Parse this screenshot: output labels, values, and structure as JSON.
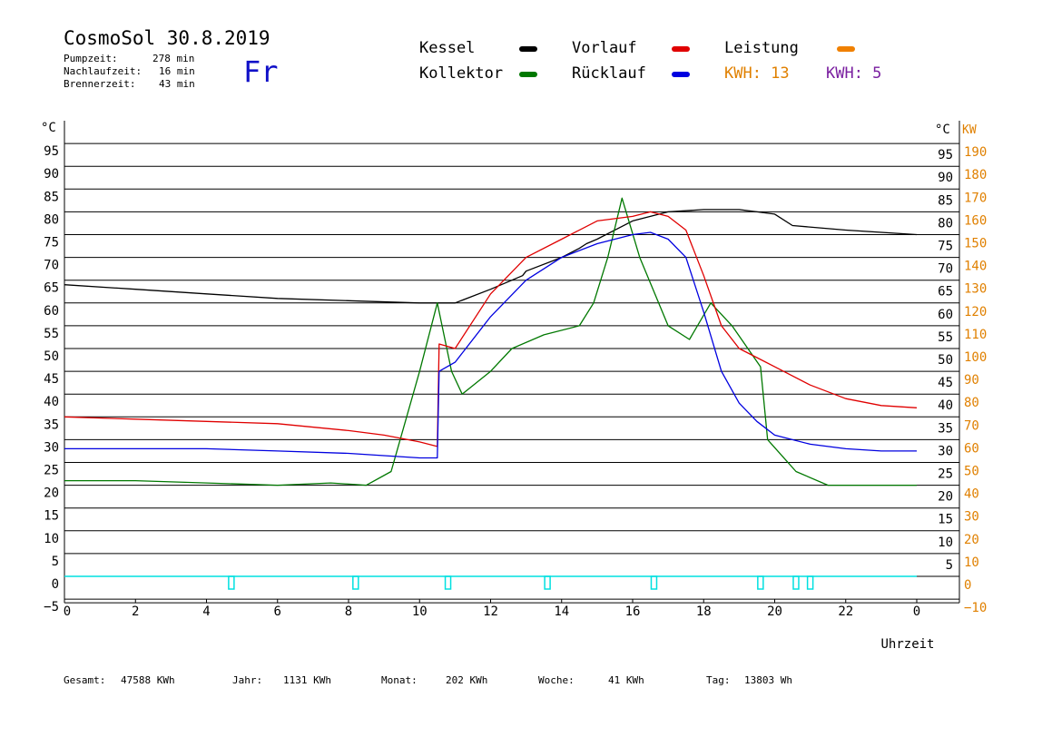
{
  "header": {
    "title": "CosmoSol 30.8.2019",
    "weekday": "Fr",
    "stats": [
      {
        "label": "Pumpzeit:",
        "value": "278 min"
      },
      {
        "label": "Nachlaufzeit:",
        "value": "16 min"
      },
      {
        "label": "Brennerzeit:",
        "value": "43 min"
      }
    ]
  },
  "legend": {
    "kessel": "Kessel",
    "kollektor": "Kollektor",
    "vorlauf": "Vorlauf",
    "ruecklauf": "Rücklauf",
    "leistung": "Leistung",
    "kwh1": "KWH: 13",
    "kwh2": "KWH: 5"
  },
  "colors": {
    "kessel": "#000000",
    "kollektor": "#007800",
    "vorlauf": "#e00000",
    "ruecklauf": "#0000e0",
    "leistung": "#f08000",
    "kwh2": "#7a1fa0",
    "pumpe": "#00e0e0",
    "right_axis": "#e08000"
  },
  "footer": [
    {
      "label": "Gesamt:",
      "value": "47588 KWh"
    },
    {
      "label": "Jahr:",
      "value": "1131 KWh"
    },
    {
      "label": "Monat:",
      "value": "202 KWh"
    },
    {
      "label": "Woche:",
      "value": "41 KWh"
    },
    {
      "label": "Tag:",
      "value": "13803 Wh"
    }
  ],
  "chart_data": {
    "type": "line",
    "xlabel": "Uhrzeit",
    "x_ticks": [
      "0",
      "2",
      "4",
      "6",
      "8",
      "10",
      "12",
      "14",
      "16",
      "18",
      "20",
      "22",
      "0"
    ],
    "xlim": [
      0,
      24
    ],
    "left_axis": {
      "unit": "°C",
      "ticks": [
        "95",
        "90",
        "85",
        "80",
        "75",
        "70",
        "65",
        "60",
        "55",
        "50",
        "45",
        "40",
        "35",
        "30",
        "25",
        "20",
        "15",
        "10",
        "5",
        "0",
        "−5"
      ],
      "ylim": [
        -5,
        100
      ]
    },
    "right_axis_c": {
      "unit": "°C",
      "ticks": [
        "95",
        "90",
        "85",
        "80",
        "75",
        "70",
        "65",
        "60",
        "55",
        "50",
        "45",
        "40",
        "35",
        "30",
        "25",
        "20",
        "15",
        "10",
        "5"
      ]
    },
    "right_axis_kw": {
      "unit": "KW",
      "ticks": [
        "190",
        "180",
        "170",
        "160",
        "150",
        "140",
        "130",
        "120",
        "110",
        "100",
        "90",
        "80",
        "70",
        "60",
        "50",
        "40",
        "30",
        "20",
        "10",
        "0",
        "−10"
      ],
      "ylim": [
        -10,
        200
      ]
    },
    "grid": true,
    "series": [
      {
        "name": "Kessel",
        "x": [
          0,
          2,
          4,
          6,
          8,
          10,
          10.6,
          11,
          12,
          12.9,
          13,
          14,
          14.5,
          14.7,
          15,
          16,
          17,
          18,
          19,
          20,
          20.5,
          22,
          24
        ],
        "y": [
          64,
          63,
          62,
          61,
          60.5,
          60,
          60,
          60,
          63,
          66,
          67,
          70,
          72,
          73,
          74,
          78,
          80,
          80.5,
          80.5,
          79.5,
          77,
          76,
          75
        ]
      },
      {
        "name": "Kollektor",
        "x": [
          0,
          2,
          4,
          6,
          7.5,
          8.5,
          9.2,
          10,
          10.5,
          10.9,
          11.2,
          12,
          12.6,
          13.5,
          14.5,
          14.9,
          15.3,
          15.7,
          16.2,
          17,
          17.6,
          18.2,
          18.8,
          19.6,
          19.8,
          20.6,
          21.5,
          22,
          24
        ],
        "y": [
          21,
          21,
          20.5,
          20,
          20.5,
          20,
          23,
          45,
          60,
          45,
          40,
          45,
          50,
          53,
          55,
          60,
          70,
          83,
          70,
          55,
          52,
          60,
          55,
          46,
          30,
          23,
          20,
          20,
          20
        ]
      },
      {
        "name": "Vorlauf",
        "x": [
          0,
          2,
          4,
          6,
          8,
          9,
          10,
          10.5,
          10.55,
          11,
          12,
          13,
          14,
          15,
          16,
          16.5,
          17,
          17.5,
          18,
          18.5,
          19,
          19.5,
          20,
          21,
          22,
          23,
          24
        ],
        "y": [
          35,
          34.5,
          34,
          33.5,
          32,
          31,
          29.5,
          28.5,
          51,
          50,
          62,
          70,
          74,
          78,
          79,
          80,
          79,
          76,
          66,
          55,
          50,
          48,
          46,
          42,
          39,
          37.5,
          37
        ]
      },
      {
        "name": "Rücklauf",
        "x": [
          0,
          2,
          4,
          6,
          8,
          9,
          10,
          10.5,
          10.55,
          11,
          12,
          13,
          14,
          15,
          16,
          16.5,
          17,
          17.5,
          18,
          18.5,
          19,
          19.5,
          20,
          21,
          22,
          23,
          24
        ],
        "y": [
          28,
          28,
          28,
          27.5,
          27,
          26.5,
          26,
          26,
          45,
          47,
          57,
          65,
          70,
          73,
          75,
          75.5,
          74,
          70,
          58,
          45,
          38,
          34,
          31,
          29,
          28,
          27.5,
          27.5
        ]
      }
    ],
    "pumpe_blips": [
      4.7,
      8.2,
      10.8,
      13.6,
      16.6,
      19.6,
      20.6,
      21.0
    ]
  }
}
